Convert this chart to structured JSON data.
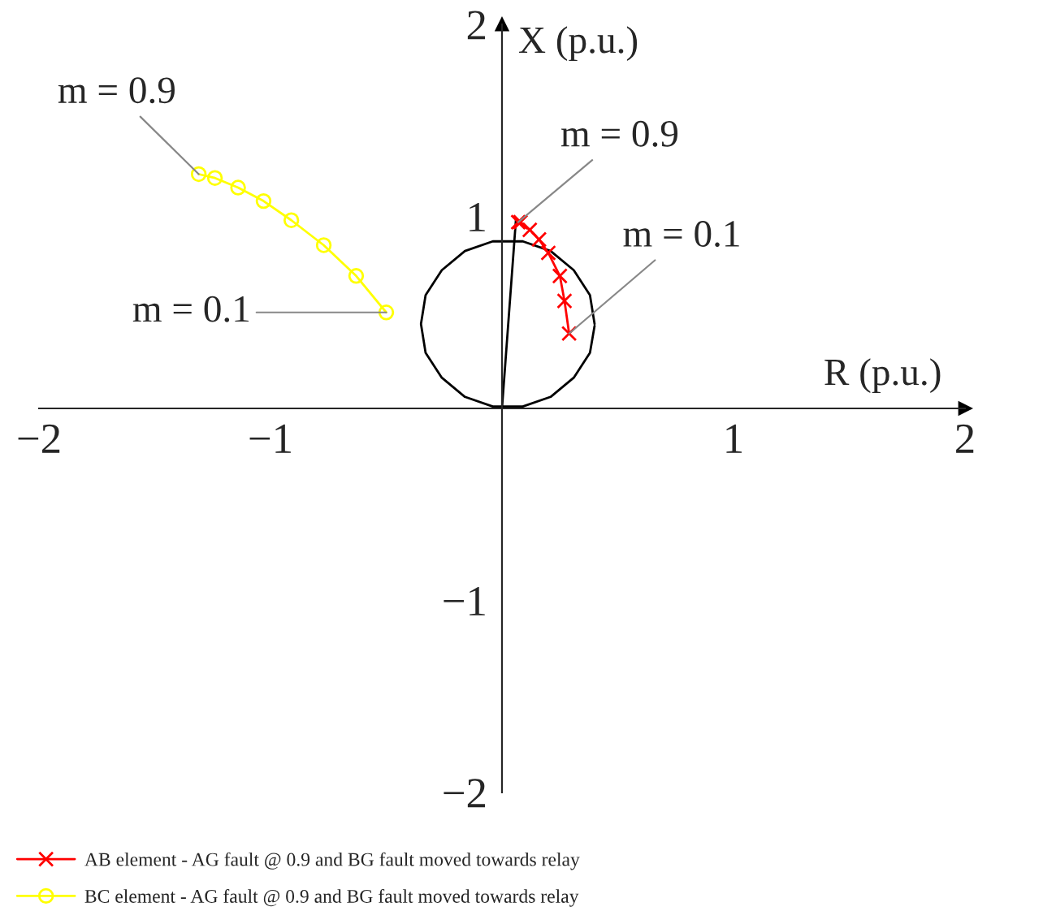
{
  "chart_data": {
    "type": "line",
    "xlabel": "R (p.u.)",
    "ylabel": "X (p.u.)",
    "xlim": [
      -2,
      2
    ],
    "ylim": [
      -2,
      2
    ],
    "xticks": [
      {
        "value": -2,
        "label": "−2"
      },
      {
        "value": -1,
        "label": "−1"
      },
      1,
      2
    ],
    "yticks": [
      {
        "value": -2,
        "label": "−2"
      },
      {
        "value": -1,
        "label": "−1"
      },
      1,
      2
    ],
    "grid": false,
    "legend": "bottom",
    "line_style": "solid",
    "series": [
      {
        "name": "AB element - AG fault @ 0.9 and BG fault moved towards relay",
        "color": "#ff0000",
        "marker": "cross",
        "x": [
          0.07,
          0.08,
          0.12,
          0.16,
          0.2,
          0.25,
          0.27,
          0.29
        ],
        "values": [
          0.97,
          0.97,
          0.93,
          0.88,
          0.81,
          0.69,
          0.56,
          0.39
        ]
      },
      {
        "name": "BC element - AG fault @ 0.9 and BG fault moved towards relay",
        "color": "#ffff00",
        "marker": "circle",
        "x": [
          -1.31,
          -1.24,
          -1.14,
          -1.03,
          -0.91,
          -0.77,
          -0.63,
          -0.5
        ],
        "values": [
          1.22,
          1.2,
          1.15,
          1.08,
          0.98,
          0.85,
          0.69,
          0.5
        ]
      },
      {
        "color": "#000000",
        "marker": "none",
        "x": [
          0.4,
          0.38,
          0.31,
          0.21,
          0.09,
          -0.04,
          -0.16,
          -0.26,
          -0.33,
          -0.35,
          -0.33,
          -0.26,
          -0.16,
          -0.04,
          0.09,
          0.21,
          0.31,
          0.38,
          0.4
        ],
        "values": [
          0.44,
          0.59,
          0.72,
          0.82,
          0.87,
          0.87,
          0.82,
          0.72,
          0.59,
          0.44,
          0.29,
          0.16,
          0.06,
          0.01,
          0.01,
          0.06,
          0.16,
          0.29,
          0.43
        ]
      },
      {
        "color": "#000000",
        "marker": "none",
        "x": [
          0,
          0.06
        ],
        "values": [
          0,
          0.98
        ]
      }
    ],
    "annotations": [
      {
        "text": "m = 0.9",
        "x": -1.31,
        "y": 1.22
      },
      {
        "text": "m = 0.1",
        "x": -0.5,
        "y": 0.5
      },
      {
        "text": "m = 0.9",
        "x": 0.07,
        "y": 0.97
      },
      {
        "text": "m = 0.1",
        "x": 0.29,
        "y": 0.39
      }
    ]
  }
}
